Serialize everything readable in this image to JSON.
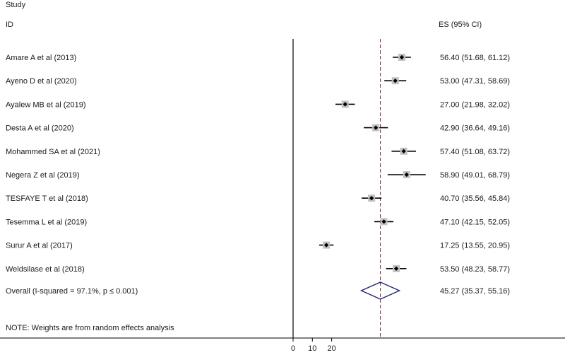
{
  "chart_data": {
    "type": "forest",
    "header": {
      "study_line1": "Study",
      "study_line2": "ID",
      "es_header": "ES (95% CI)"
    },
    "studies": [
      {
        "label": "Amare A et al (2013)",
        "es": 56.4,
        "lo": 51.68,
        "hi": 61.12,
        "es_text": "56.40 (51.68, 61.12)"
      },
      {
        "label": "Ayeno D et al (2020)",
        "es": 53.0,
        "lo": 47.31,
        "hi": 58.69,
        "es_text": "53.00 (47.31, 58.69)"
      },
      {
        "label": "Ayalew MB et al (2019)",
        "es": 27.0,
        "lo": 21.98,
        "hi": 32.02,
        "es_text": "27.00 (21.98, 32.02)"
      },
      {
        "label": "Desta A et al (2020)",
        "es": 42.9,
        "lo": 36.64,
        "hi": 49.16,
        "es_text": "42.90 (36.64, 49.16)"
      },
      {
        "label": "Mohammed SA et al (2021)",
        "es": 57.4,
        "lo": 51.08,
        "hi": 63.72,
        "es_text": "57.40 (51.08, 63.72)"
      },
      {
        "label": "Negera Z et al (2019)",
        "es": 58.9,
        "lo": 49.01,
        "hi": 68.79,
        "es_text": "58.90 (49.01, 68.79)"
      },
      {
        "label": "TESFAYE T et al (2018)",
        "es": 40.7,
        "lo": 35.56,
        "hi": 45.84,
        "es_text": "40.70 (35.56, 45.84)"
      },
      {
        "label": "Tesemma L et al (2019)",
        "es": 47.1,
        "lo": 42.15,
        "hi": 52.05,
        "es_text": "47.10 (42.15, 52.05)"
      },
      {
        "label": "Surur A et al (2017)",
        "es": 17.25,
        "lo": 13.55,
        "hi": 20.95,
        "es_text": "17.25 (13.55, 20.95)"
      },
      {
        "label": "Weldsilase et al (2018)",
        "es": 53.5,
        "lo": 48.23,
        "hi": 58.77,
        "es_text": "53.50 (48.23, 58.77)"
      }
    ],
    "overall": {
      "label": "Overall  (I-squared = 97.1%, p ≤ 0.001)",
      "es": 45.27,
      "lo": 35.37,
      "hi": 55.16,
      "es_text": "45.27 (35.37, 55.16)"
    },
    "note": "NOTE: Weights are from random effects analysis",
    "x_ticks": [
      0,
      10,
      20
    ],
    "x_tick_labels": [
      "0",
      "10",
      "20"
    ],
    "colors": {
      "ci_line": "#000000",
      "point": "#000000",
      "weight_box": "#c2c2c2",
      "overall_diamond": "#1a1f6e",
      "overall_line": "#8b2a3c",
      "null_line": "#000000"
    }
  }
}
